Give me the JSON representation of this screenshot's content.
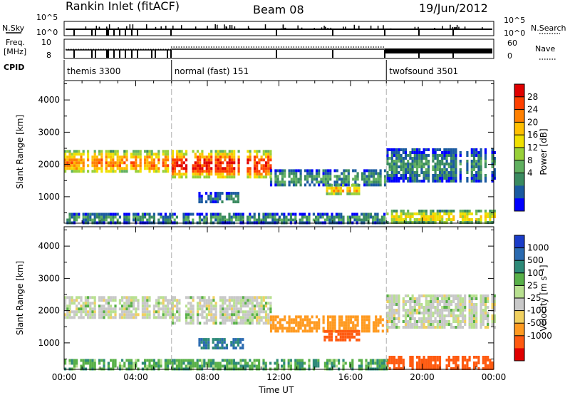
{
  "header": {
    "station": "Rankin Inlet (fitACF)",
    "beam": "Beam 08",
    "date": "19/Jun/2012"
  },
  "status_panel": {
    "left_label_1": "N.Sky",
    "left_label_2a": "Freq.",
    "left_label_2b": "[MHz]",
    "left_label_3": "CPID",
    "right_label_1": "N.Search",
    "right_label_2": "Nave",
    "nsky_ticks": [
      "10^5",
      "10^0"
    ],
    "freq_ticks": [
      "10",
      "8"
    ],
    "nsearch_ticks": [
      "10^5",
      "10^0"
    ],
    "nave_ticks": [
      "60",
      "0"
    ]
  },
  "chart_data": [
    {
      "type": "heatmap",
      "panel": "power",
      "xlabel": "",
      "ylabel": "Slant Range [km]",
      "y_ticks": [
        1000,
        2000,
        3000,
        4000
      ],
      "x_ticks": [
        "00:00",
        "04:00",
        "08:00",
        "12:00",
        "16:00",
        "20:00",
        "00:00"
      ],
      "xlim_hours": [
        0,
        24
      ],
      "ylim_km": [
        180,
        4600
      ],
      "colorbar_label": "Power [dB]",
      "colorbar_ticks": [
        "28",
        "24",
        "20",
        "16",
        "12",
        "8",
        "4"
      ],
      "colorbar_colors": [
        "#e00000",
        "#ff4000",
        "#ff8000",
        "#ffbf00",
        "#f0e000",
        "#98d038",
        "#60b060",
        "#3a8a60",
        "#1a5aa0",
        "#0000ff"
      ],
      "control_programs": [
        {
          "name": "themis 3300",
          "start_h": 0,
          "end_h": 6
        },
        {
          "name": "normal (fast) 151",
          "start_h": 6,
          "end_h": 18
        },
        {
          "name": "twofsound 3501",
          "start_h": 18,
          "end_h": 24
        }
      ],
      "echo_regions": [
        {
          "t0": 0.0,
          "t1": 6.0,
          "r0": 1750,
          "r1": 2450,
          "db": 22
        },
        {
          "t0": 6.0,
          "t1": 11.5,
          "r0": 1600,
          "r1": 2450,
          "db": 26
        },
        {
          "t0": 11.5,
          "t1": 18.0,
          "r0": 1350,
          "r1": 1850,
          "db": 10
        },
        {
          "t0": 14.5,
          "t1": 16.5,
          "r0": 1100,
          "r1": 1400,
          "db": 20
        },
        {
          "t0": 7.5,
          "t1": 10.0,
          "r0": 800,
          "r1": 1150,
          "db": 8
        },
        {
          "t0": 18.0,
          "t1": 24.0,
          "r0": 1500,
          "r1": 2500,
          "db": 9
        },
        {
          "t0": 18.0,
          "t1": 24.0,
          "r0": 220,
          "r1": 600,
          "db": 18
        },
        {
          "t0": 0.0,
          "t1": 18.0,
          "r0": 220,
          "r1": 500,
          "db": 10
        }
      ]
    },
    {
      "type": "heatmap",
      "panel": "velocity",
      "xlabel": "Time UT",
      "ylabel": "Slant Range [km]",
      "y_ticks": [
        1000,
        2000,
        3000,
        4000
      ],
      "x_ticks": [
        "00:00",
        "04:00",
        "08:00",
        "12:00",
        "16:00",
        "20:00",
        "00:00"
      ],
      "xlim_hours": [
        0,
        24
      ],
      "ylim_km": [
        180,
        4600
      ],
      "colorbar_label": "Velocity [m s⁻¹]",
      "colorbar_ticks": [
        "1000",
        "500",
        "100",
        "25",
        "-25",
        "-100",
        "-500",
        "-1000"
      ],
      "colorbar_colors": [
        "#1a3cc8",
        "#2a6ab0",
        "#2e8a78",
        "#58b048",
        "#b8e090",
        "#c8c8c8",
        "#f0d060",
        "#ff9a20",
        "#ff5a10",
        "#e00000"
      ],
      "echo_regions": [
        {
          "t0": 0.0,
          "t1": 6.0,
          "r0": 1750,
          "r1": 2450,
          "v": 0
        },
        {
          "t0": 6.0,
          "t1": 11.5,
          "r0": 1600,
          "r1": 2450,
          "v": 0
        },
        {
          "t0": 11.5,
          "t1": 18.0,
          "r0": 1350,
          "r1": 1850,
          "v": -150
        },
        {
          "t0": 14.5,
          "t1": 16.5,
          "r0": 1100,
          "r1": 1400,
          "v": -300
        },
        {
          "t0": 7.5,
          "t1": 10.0,
          "r0": 800,
          "r1": 1150,
          "v": 300
        },
        {
          "t0": 18.0,
          "t1": 24.0,
          "r0": 1500,
          "r1": 2500,
          "v": 0
        },
        {
          "t0": 18.0,
          "t1": 24.0,
          "r0": 220,
          "r1": 600,
          "v": -300
        },
        {
          "t0": 0.0,
          "t1": 18.0,
          "r0": 220,
          "r1": 500,
          "v": 50
        }
      ]
    }
  ]
}
